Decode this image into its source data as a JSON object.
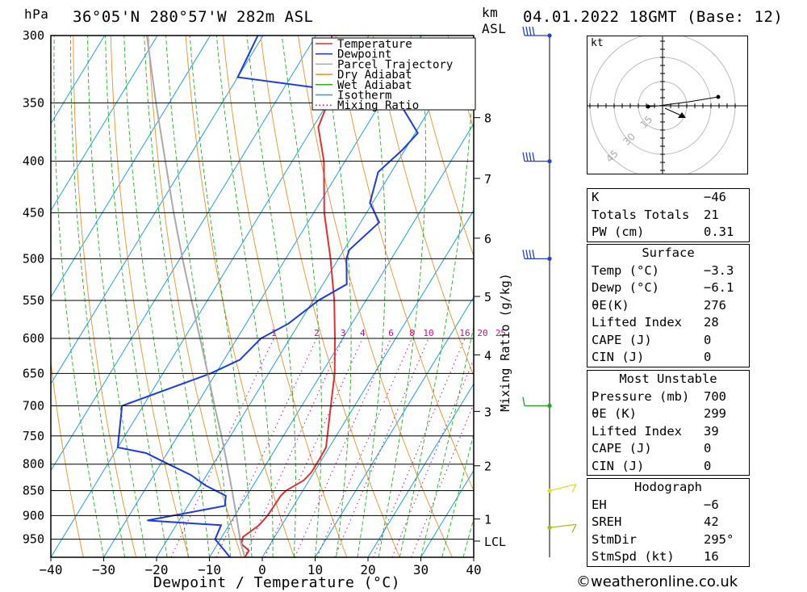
{
  "header": {
    "hpa_label": "hPa",
    "location": "36°05'N  280°57'W  282m  ASL",
    "km_label": "km",
    "asl_label": "ASL",
    "datetime": "04.01.2022  18GMT  (Base: 12)"
  },
  "chart_data": {
    "type": "line",
    "subtype": "skew-t log-p",
    "xlabel": "Dewpoint / Temperature (°C)",
    "ylabel": "hPa",
    "right_axis_label": "km ASL",
    "mixing_ratio_axis_label": "Mixing Ratio (g/kg)",
    "xlim": [
      -40,
      40
    ],
    "ylim_hpa": [
      300,
      990
    ],
    "pressure_ticks": [
      300,
      350,
      400,
      450,
      500,
      550,
      600,
      650,
      700,
      750,
      800,
      850,
      900,
      950
    ],
    "temperature_ticks": [
      -40,
      -30,
      -20,
      -10,
      0,
      10,
      20,
      30,
      40
    ],
    "temperature_tick_labels": [
      "−40",
      "−30",
      "−20",
      "−10",
      "0",
      "10",
      "20",
      "30",
      "40"
    ],
    "height_ticks": [
      {
        "label": "8",
        "p": 362
      },
      {
        "label": "7",
        "p": 416
      },
      {
        "label": "6",
        "p": 477
      },
      {
        "label": "5",
        "p": 545
      },
      {
        "label": "4",
        "p": 623
      },
      {
        "label": "3",
        "p": 709
      },
      {
        "label": "2",
        "p": 803
      },
      {
        "label": "1",
        "p": 907
      },
      {
        "label": "LCL",
        "p": 954
      }
    ],
    "mixing_ratio_labels": [
      "1",
      "2",
      "3",
      "4",
      "6",
      "8",
      "10",
      "16",
      "20",
      "25"
    ],
    "mixing_ratio_values": [
      1,
      2,
      3,
      4,
      6,
      8,
      10,
      16,
      20,
      25
    ],
    "legend": [
      "Temperature",
      "Dewpoint",
      "Parcel Trajectory",
      "Dry Adiabat",
      "Wet Adiabat",
      "Isotherm",
      "Mixing Ratio"
    ],
    "legend_position": "top-right",
    "series": [
      {
        "name": "Temperature",
        "color": "#e03030",
        "points": [
          [
            990,
            -3.3
          ],
          [
            975,
            -3.3
          ],
          [
            960,
            -5.5
          ],
          [
            945,
            -6.0
          ],
          [
            920,
            -4.3
          ],
          [
            900,
            -3.8
          ],
          [
            880,
            -3.7
          ],
          [
            860,
            -3.6
          ],
          [
            850,
            -3.2
          ],
          [
            830,
            -1.0
          ],
          [
            815,
            -0.5
          ],
          [
            790,
            -0.5
          ],
          [
            770,
            -0.6
          ],
          [
            700,
            -4.5
          ],
          [
            650,
            -7.5
          ],
          [
            600,
            -11.5
          ],
          [
            550,
            -16
          ],
          [
            500,
            -21.5
          ],
          [
            450,
            -28
          ],
          [
            400,
            -34
          ],
          [
            370,
            -39
          ],
          [
            350,
            -40
          ],
          [
            300,
            -47
          ]
        ]
      },
      {
        "name": "Dewpoint",
        "color": "#1c3ce0",
        "points": [
          [
            990,
            -6.1
          ],
          [
            970,
            -8.5
          ],
          [
            950,
            -11
          ],
          [
            920,
            -11.5
          ],
          [
            910,
            -26
          ],
          [
            880,
            -13
          ],
          [
            860,
            -14
          ],
          [
            840,
            -19
          ],
          [
            820,
            -23
          ],
          [
            800,
            -28.5
          ],
          [
            780,
            -34
          ],
          [
            770,
            -40
          ],
          [
            700,
            -44
          ],
          [
            650,
            -31
          ],
          [
            630,
            -27
          ],
          [
            600,
            -25.5
          ],
          [
            580,
            -22
          ],
          [
            550,
            -19
          ],
          [
            530,
            -15.5
          ],
          [
            500,
            -18.5
          ],
          [
            490,
            -19
          ],
          [
            460,
            -16.5
          ],
          [
            440,
            -20.5
          ],
          [
            410,
            -22.5
          ],
          [
            390,
            -20.5
          ],
          [
            375,
            -19.5
          ],
          [
            355,
            -25
          ],
          [
            340,
            -40
          ],
          [
            330,
            -60
          ],
          [
            300,
            -61
          ]
        ]
      },
      {
        "name": "Parcel Trajectory",
        "color": "#aaaaaa",
        "points": [
          [
            990,
            -3.3
          ],
          [
            954,
            -6.0
          ],
          [
            900,
            -9.7
          ],
          [
            850,
            -13.4
          ],
          [
            800,
            -17.4
          ],
          [
            750,
            -21.7
          ],
          [
            700,
            -26.5
          ],
          [
            650,
            -31.5
          ],
          [
            600,
            -37
          ],
          [
            550,
            -43
          ],
          [
            500,
            -49.5
          ],
          [
            450,
            -56.5
          ],
          [
            400,
            -64
          ],
          [
            350,
            -72.5
          ],
          [
            300,
            -82
          ]
        ]
      }
    ],
    "wind_barbs": [
      {
        "p": 300,
        "speed_kt": 60,
        "color": "#2040d0"
      },
      {
        "p": 400,
        "speed_kt": 55,
        "color": "#2040d0"
      },
      {
        "p": 500,
        "speed_kt": 55,
        "color": "#2040d0"
      },
      {
        "p": 700,
        "speed_kt": 15,
        "color": "#20a020"
      },
      {
        "p": 850,
        "speed_kt": 10,
        "color": "#e0e020"
      },
      {
        "p": 925,
        "speed_kt": 15,
        "color": "#a0c020"
      }
    ]
  },
  "hodograph": {
    "unit_label": "kt",
    "ring_labels": [
      "15",
      "30",
      "45"
    ]
  },
  "indices": {
    "k": {
      "label": "K",
      "value": "−46"
    },
    "tt": {
      "label": "Totals Totals",
      "value": "21"
    },
    "pw": {
      "label": "PW (cm)",
      "value": "0.31"
    }
  },
  "surface": {
    "title": "Surface",
    "rows": [
      {
        "label": "Temp (°C)",
        "value": "−3.3"
      },
      {
        "label": "Dewp (°C)",
        "value": "−6.1"
      },
      {
        "label": "θE(K)",
        "value": "276"
      },
      {
        "label": "Lifted Index",
        "value": "28"
      },
      {
        "label": "CAPE (J)",
        "value": "0"
      },
      {
        "label": "CIN (J)",
        "value": "0"
      }
    ]
  },
  "most_unstable": {
    "title": "Most Unstable",
    "rows": [
      {
        "label": "Pressure (mb)",
        "value": "700"
      },
      {
        "label": "θE (K)",
        "value": "299"
      },
      {
        "label": "Lifted Index",
        "value": "39"
      },
      {
        "label": "CAPE (J)",
        "value": "0"
      },
      {
        "label": "CIN (J)",
        "value": "0"
      }
    ]
  },
  "hodograph_params": {
    "title": "Hodograph",
    "rows": [
      {
        "label": "EH",
        "value": "−6"
      },
      {
        "label": "SREH",
        "value": "42"
      },
      {
        "label": "StmDir",
        "value": "295°"
      },
      {
        "label": "StmSpd (kt)",
        "value": "16"
      }
    ]
  },
  "footer": "©weatheronline.co.uk",
  "colors": {
    "temperature": "#e03030",
    "dewpoint": "#1c3ce0",
    "parcel": "#aaaaaa",
    "dry_adiabat": "#e8902a",
    "wet_adiabat": "#20b020",
    "isotherm": "#20a0e0",
    "mixing_ratio": "#c0108c"
  }
}
